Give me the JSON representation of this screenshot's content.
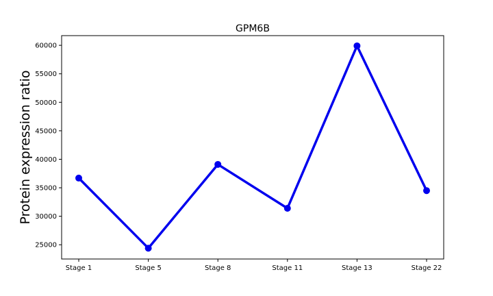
{
  "chart_data": {
    "type": "line",
    "title": "GPM6B",
    "xlabel": "",
    "ylabel": "Protein expression ratio",
    "categories": [
      "Stage 1",
      "Stage 5",
      "Stage 8",
      "Stage 11",
      "Stage 13",
      "Stage 22"
    ],
    "series": [
      {
        "values": [
          36700,
          24400,
          39100,
          31400,
          59900,
          34500
        ],
        "color": "#0000ee"
      }
    ],
    "ylim": [
      22500,
      61700
    ],
    "yticks": [
      25000,
      30000,
      35000,
      40000,
      45000,
      50000,
      55000,
      60000
    ],
    "grid": false,
    "legend": "none"
  }
}
